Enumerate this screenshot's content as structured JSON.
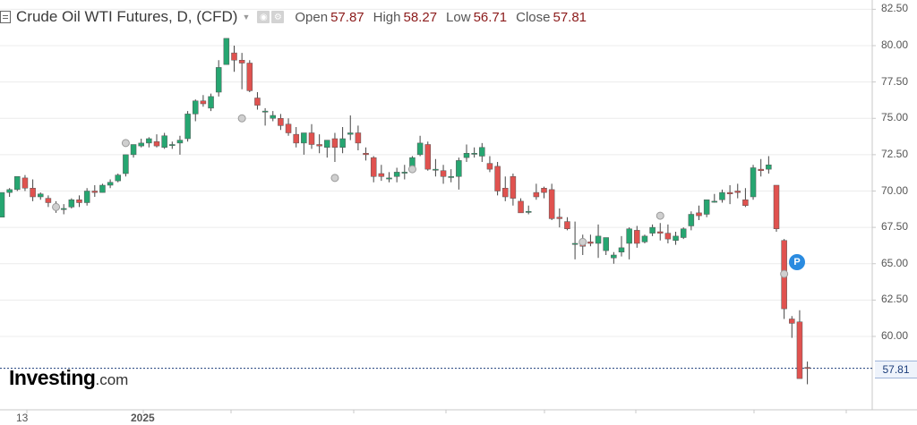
{
  "header": {
    "symbol_title": "Crude Oil WTI Futures, D, (CFD)",
    "open_label": "Open",
    "open_value": "57.87",
    "high_label": "High",
    "high_value": "58.27",
    "low_label": "Low",
    "low_value": "56.71",
    "close_label": "Close",
    "close_value": "57.81"
  },
  "logo": {
    "main": "Investing",
    "sub": ".com"
  },
  "marker_label": "P",
  "last_price_tag": "57.81",
  "colors": {
    "up": "#26a671",
    "down": "#e0524f",
    "grid": "#ececec",
    "axis": "#c8c8c8",
    "last_line": "#1c3d7a"
  },
  "chart_data": {
    "type": "candlestick",
    "title": "Crude Oil WTI Futures, D, (CFD)",
    "y_ticks": [
      "82.50",
      "80.00",
      "77.50",
      "75.00",
      "72.50",
      "70.00",
      "67.50",
      "65.00",
      "62.50",
      "60.00"
    ],
    "x_tick_labels": [
      "13",
      "2025"
    ],
    "ylim": [
      56.5,
      82.9
    ],
    "last_price": 57.81,
    "candles": [
      [
        68.2,
        69.9,
        69.9,
        68.2
      ],
      [
        69.9,
        70.2,
        70.1,
        69.6
      ],
      [
        70.1,
        71.0,
        71.0,
        70.0
      ],
      [
        70.9,
        71.1,
        70.2,
        70.0
      ],
      [
        70.2,
        70.8,
        69.6,
        69.3
      ],
      [
        69.6,
        69.9,
        69.8,
        69.4
      ],
      [
        69.5,
        69.7,
        69.2,
        68.9
      ],
      [
        69.0,
        69.3,
        68.9,
        68.5
      ],
      [
        68.8,
        69.1,
        68.8,
        68.4
      ],
      [
        68.9,
        69.5,
        69.4,
        68.8
      ],
      [
        69.4,
        69.7,
        69.2,
        68.9
      ],
      [
        69.2,
        70.2,
        70.0,
        69.0
      ],
      [
        70.0,
        70.4,
        69.9,
        69.6
      ],
      [
        69.9,
        70.5,
        70.4,
        69.9
      ],
      [
        70.4,
        70.8,
        70.6,
        70.2
      ],
      [
        70.7,
        71.2,
        71.1,
        70.6
      ],
      [
        71.2,
        72.5,
        72.5,
        71.0
      ],
      [
        72.5,
        73.2,
        73.2,
        72.3
      ],
      [
        73.1,
        73.6,
        73.3,
        73.0
      ],
      [
        73.3,
        73.7,
        73.6,
        73.0
      ],
      [
        73.4,
        73.9,
        73.1,
        73.0
      ],
      [
        73.0,
        74.0,
        73.8,
        72.9
      ],
      [
        73.2,
        73.4,
        73.2,
        72.9
      ],
      [
        73.3,
        73.8,
        73.5,
        72.5
      ],
      [
        73.6,
        75.5,
        75.3,
        73.4
      ],
      [
        75.3,
        76.3,
        76.2,
        74.8
      ],
      [
        76.2,
        76.6,
        76.0,
        75.8
      ],
      [
        75.7,
        76.7,
        76.5,
        75.5
      ],
      [
        76.8,
        79.0,
        78.5,
        76.5
      ],
      [
        78.7,
        80.5,
        80.5,
        78.7
      ],
      [
        79.5,
        80.0,
        79.0,
        78.2
      ],
      [
        79.0,
        79.5,
        78.8,
        77.0
      ],
      [
        78.8,
        79.0,
        76.9,
        76.8
      ],
      [
        76.4,
        76.8,
        75.9,
        75.6
      ],
      [
        75.5,
        75.7,
        75.5,
        74.5
      ],
      [
        75.0,
        75.5,
        75.2,
        74.8
      ],
      [
        75.0,
        75.3,
        74.5,
        74.2
      ],
      [
        74.6,
        75.0,
        74.0,
        73.8
      ],
      [
        73.9,
        74.4,
        73.3,
        73.0
      ],
      [
        73.3,
        73.8,
        74.0,
        72.5
      ],
      [
        74.0,
        74.6,
        73.2,
        72.9
      ],
      [
        73.2,
        73.9,
        73.1,
        72.6
      ],
      [
        73.0,
        73.5,
        73.5,
        72.3
      ],
      [
        73.6,
        74.0,
        73.0,
        72.0
      ],
      [
        73.0,
        74.4,
        73.6,
        72.6
      ],
      [
        73.9,
        75.2,
        74.0,
        73.5
      ],
      [
        74.0,
        74.5,
        73.3,
        72.8
      ],
      [
        72.6,
        73.0,
        72.5,
        72.1
      ],
      [
        72.3,
        72.4,
        71.0,
        70.6
      ],
      [
        71.2,
        71.8,
        71.0,
        70.7
      ],
      [
        70.9,
        71.3,
        70.9,
        70.6
      ],
      [
        71.0,
        71.6,
        71.3,
        70.6
      ],
      [
        71.3,
        71.8,
        71.3,
        70.8
      ],
      [
        71.6,
        72.4,
        72.3,
        71.5
      ],
      [
        72.5,
        73.8,
        73.3,
        72.4
      ],
      [
        73.2,
        73.4,
        71.5,
        71.4
      ],
      [
        71.5,
        72.2,
        71.5,
        71.0
      ],
      [
        71.4,
        71.8,
        71.0,
        70.5
      ],
      [
        71.0,
        71.5,
        71.0,
        70.6
      ],
      [
        71.0,
        72.3,
        72.1,
        70.1
      ],
      [
        72.3,
        73.2,
        72.6,
        72.0
      ],
      [
        72.6,
        73.0,
        72.6,
        72.3
      ],
      [
        72.4,
        73.3,
        73.0,
        72.0
      ],
      [
        71.9,
        72.4,
        71.5,
        71.3
      ],
      [
        71.7,
        72.0,
        70.0,
        69.7
      ],
      [
        70.2,
        71.0,
        69.6,
        69.3
      ],
      [
        71.0,
        71.2,
        69.5,
        69.0
      ],
      [
        69.3,
        69.5,
        68.5,
        68.5
      ],
      [
        68.6,
        69.0,
        68.6,
        68.4
      ],
      [
        69.9,
        70.5,
        69.6,
        69.4
      ],
      [
        70.2,
        70.3,
        69.9,
        69.5
      ],
      [
        70.1,
        70.5,
        68.1,
        68.0
      ],
      [
        68.2,
        68.8,
        68.1,
        67.5
      ],
      [
        67.9,
        68.2,
        67.4,
        67.3
      ],
      [
        66.4,
        67.9,
        66.4,
        65.3
      ],
      [
        66.4,
        67.0,
        66.2,
        65.6
      ],
      [
        66.5,
        67.0,
        66.4,
        66.2
      ],
      [
        66.4,
        67.7,
        66.9,
        65.4
      ],
      [
        65.9,
        66.0,
        66.8,
        65.6
      ],
      [
        65.4,
        65.8,
        65.6,
        65.0
      ],
      [
        65.8,
        66.9,
        66.1,
        65.5
      ],
      [
        66.4,
        67.5,
        67.4,
        65.3
      ],
      [
        67.3,
        67.6,
        66.4,
        66.1
      ],
      [
        66.5,
        67.0,
        66.9,
        66.4
      ],
      [
        67.1,
        67.7,
        67.5,
        66.9
      ],
      [
        67.2,
        67.8,
        67.1,
        66.6
      ],
      [
        67.1,
        67.7,
        66.7,
        66.4
      ],
      [
        66.6,
        67.2,
        66.9,
        66.3
      ],
      [
        66.8,
        67.5,
        67.4,
        66.7
      ],
      [
        67.6,
        68.6,
        68.4,
        67.3
      ],
      [
        68.5,
        69.0,
        68.3,
        68.0
      ],
      [
        68.4,
        69.4,
        69.4,
        68.2
      ],
      [
        69.3,
        69.8,
        69.3,
        69.2
      ],
      [
        69.4,
        70.1,
        69.9,
        69.2
      ],
      [
        69.9,
        70.4,
        69.8,
        69.1
      ],
      [
        70.0,
        70.5,
        69.9,
        69.5
      ],
      [
        69.4,
        70.2,
        69.0,
        68.9
      ],
      [
        69.6,
        71.8,
        71.6,
        69.4
      ],
      [
        71.5,
        72.2,
        71.4,
        71.0
      ],
      [
        71.5,
        72.4,
        71.8,
        71.2
      ],
      [
        70.4,
        70.4,
        67.4,
        67.2
      ],
      [
        66.6,
        66.7,
        61.9,
        61.2
      ],
      [
        61.2,
        61.4,
        60.9,
        59.9
      ],
      [
        61.0,
        61.8,
        57.1,
        57.2
      ],
      [
        57.87,
        58.27,
        57.81,
        56.71
      ]
    ],
    "gray_markers": [
      {
        "i": 7,
        "v": 68.9
      },
      {
        "i": 16,
        "v": 73.3
      },
      {
        "i": 31,
        "v": 75.0
      },
      {
        "i": 43,
        "v": 70.9
      },
      {
        "i": 53,
        "v": 71.5
      },
      {
        "i": 75,
        "v": 66.5
      },
      {
        "i": 85,
        "v": 68.3
      },
      {
        "i": 101,
        "v": 64.3
      }
    ]
  }
}
